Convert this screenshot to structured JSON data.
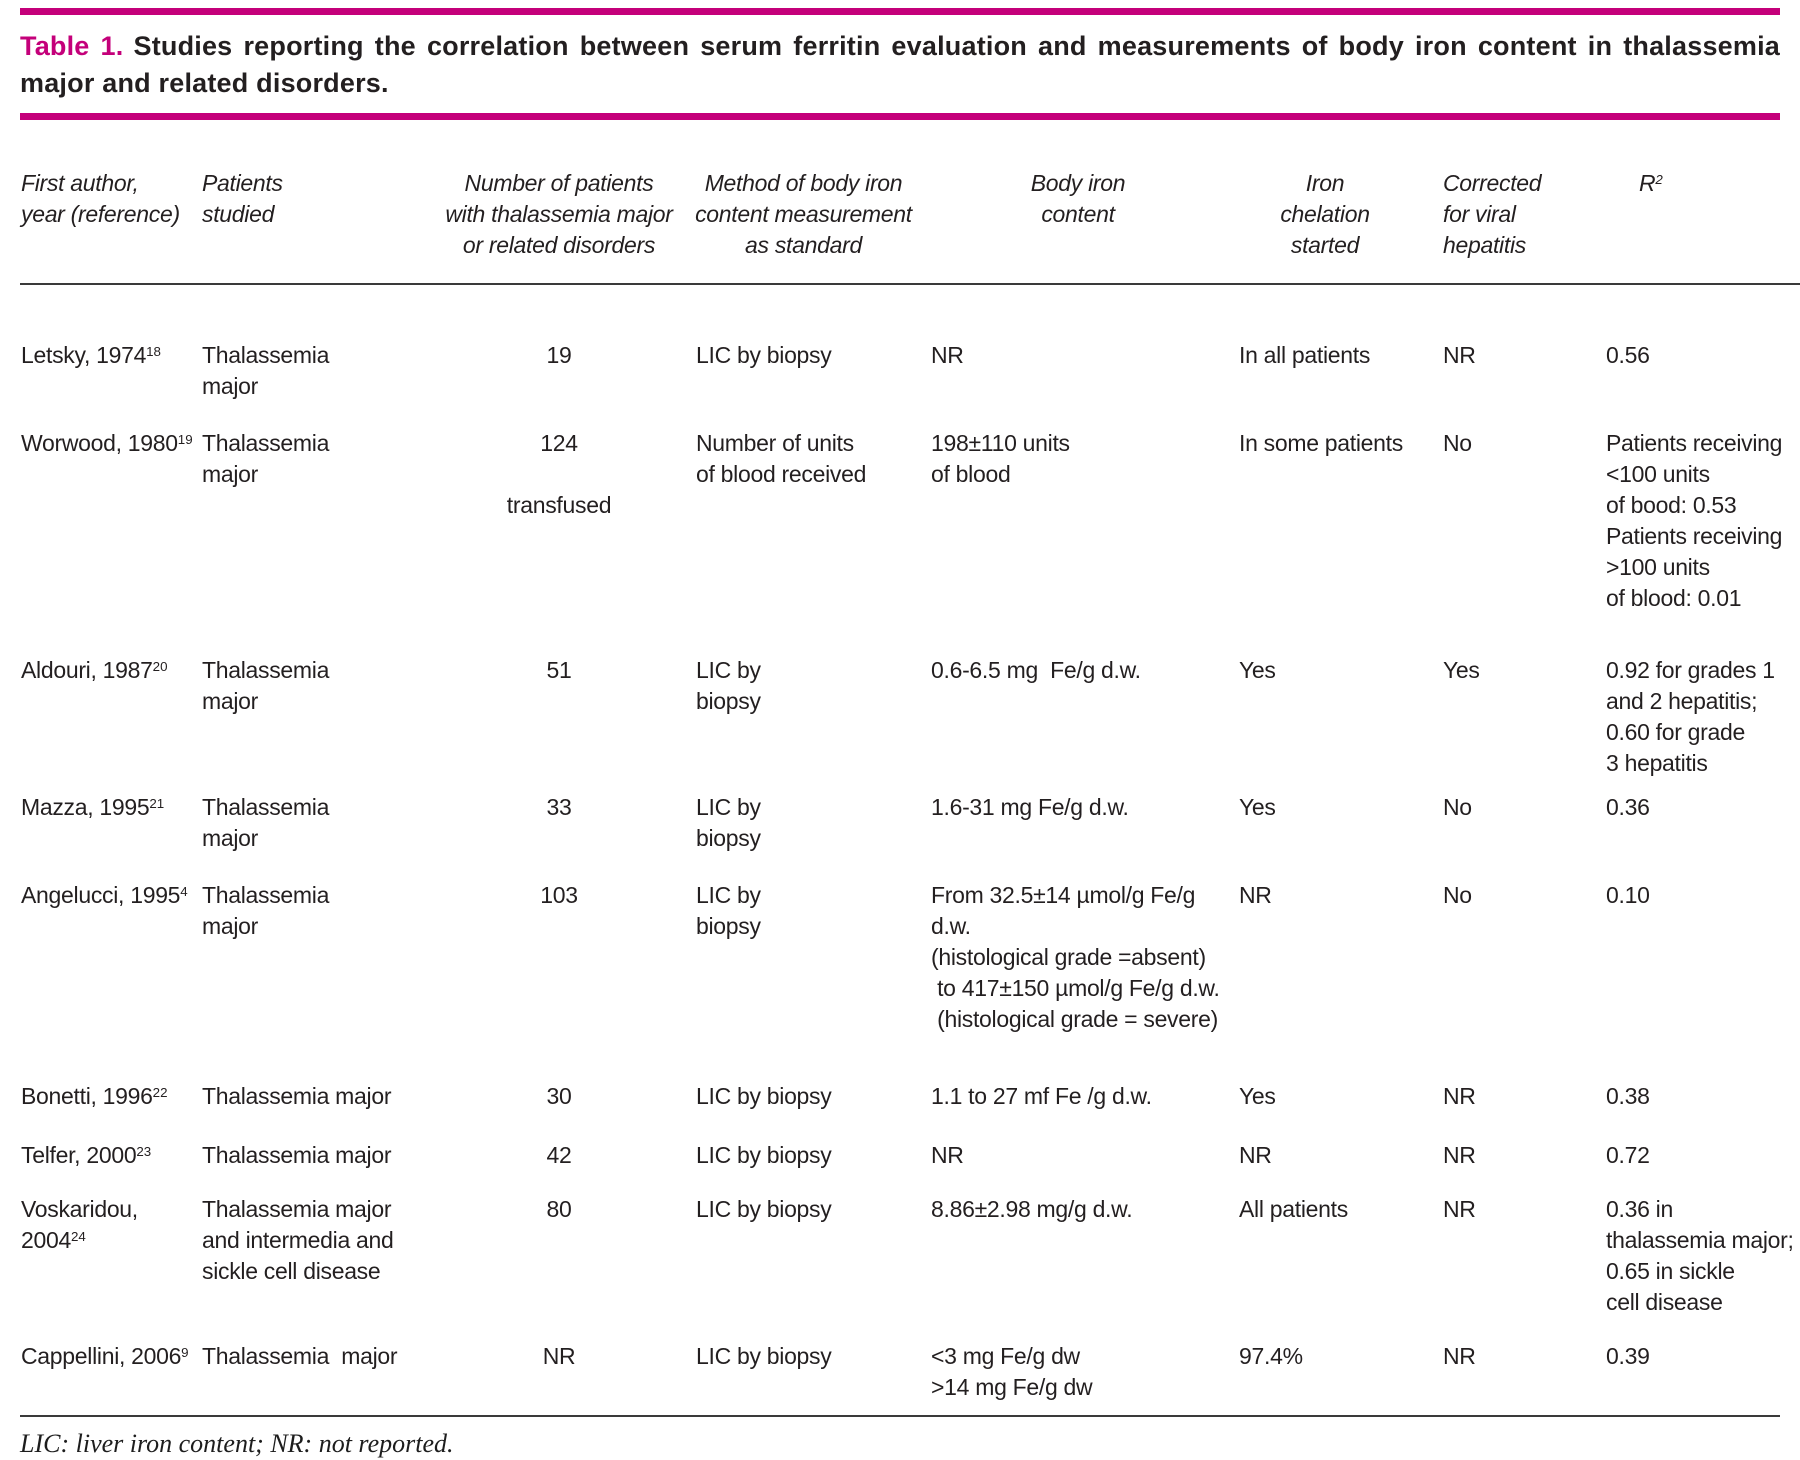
{
  "title": {
    "label": "Table 1.",
    "caption": "Studies reporting the correlation between serum ferritin evaluation and measurements of body iron content in thalassemia major and related disorders."
  },
  "table": {
    "columns": [
      {
        "key": "author",
        "label": "First author,\nyear (reference)"
      },
      {
        "key": "patients",
        "label": "Patients\nstudied"
      },
      {
        "key": "n_patients",
        "label": "Number of patients\nwith thalassemia major\nor related disorders"
      },
      {
        "key": "method",
        "label": "Method of body iron\ncontent measurement\nas standard"
      },
      {
        "key": "body_iron",
        "label": "Body iron\ncontent"
      },
      {
        "key": "chelation",
        "label": "Iron\nchelation\nstarted"
      },
      {
        "key": "corrected",
        "label": "Corrected\nfor viral\nhepatitis"
      },
      {
        "key": "r2",
        "label": "R",
        "sup": "2"
      }
    ],
    "rows": [
      {
        "author": {
          "text": "Letsky, 1974",
          "sup": "18"
        },
        "patients": "Thalassemia\nmajor",
        "n_patients": "19",
        "method": "LIC by biopsy",
        "body_iron": "NR",
        "chelation": "In all patients",
        "corrected": "NR",
        "r2": "0.56"
      },
      {
        "author": {
          "text": "Worwood, 1980",
          "sup": "19"
        },
        "patients": "Thalassemia\nmajor",
        "n_patients": "124\n\ntransfused",
        "method": "Number of units\nof blood received",
        "body_iron": "198±110 units\nof blood",
        "chelation": "In some patients",
        "corrected": "No",
        "r2": "Patients receiving\n<100 units\nof bood: 0.53\nPatients receiving\n>100 units\nof blood: 0.01"
      },
      {
        "author": {
          "text": "Aldouri, 1987",
          "sup": "20"
        },
        "patients": "Thalassemia\nmajor",
        "n_patients": "51",
        "method": "LIC by\nbiopsy",
        "body_iron": "0.6-6.5 mg  Fe/g d.w.",
        "chelation": "Yes",
        "corrected": "Yes",
        "r2": "0.92 for grades 1\nand 2 hepatitis;\n0.60 for grade\n3 hepatitis"
      },
      {
        "author": {
          "text": "Mazza, 1995",
          "sup": "21"
        },
        "patients": "Thalassemia\nmajor",
        "n_patients": "33",
        "method": "LIC by\nbiopsy",
        "body_iron": "1.6-31 mg Fe/g d.w.",
        "chelation": "Yes",
        "corrected": "No",
        "r2": "0.36"
      },
      {
        "author": {
          "text": "Angelucci, 1995",
          "sup": "4"
        },
        "patients": "Thalassemia\nmajor",
        "n_patients": "103",
        "method": "LIC by\nbiopsy",
        "body_iron": "From 32.5±14 µmol/g Fe/g d.w.\n(histological grade =absent)\n to 417±150 µmol/g Fe/g d.w.\n (histological grade = severe)",
        "chelation": "NR",
        "corrected": "No",
        "r2": "0.10"
      },
      {
        "author": {
          "text": "Bonetti, 1996",
          "sup": "22"
        },
        "patients": "Thalassemia major",
        "n_patients": "30",
        "method": "LIC by biopsy",
        "body_iron": "1.1 to 27 mf Fe /g d.w.",
        "chelation": "Yes",
        "corrected": "NR",
        "r2": "0.38"
      },
      {
        "author": {
          "text": "Telfer, 2000",
          "sup": "23"
        },
        "patients": "Thalassemia major",
        "n_patients": "42",
        "method": "LIC by biopsy",
        "body_iron": "NR",
        "chelation": "NR",
        "corrected": "NR",
        "r2": "0.72"
      },
      {
        "author": {
          "text": "Voskaridou, 2004",
          "sup": "24"
        },
        "patients": "Thalassemia major\nand intermedia and\nsickle cell disease",
        "n_patients": "80",
        "method": "LIC by biopsy",
        "body_iron": "8.86±2.98 mg/g d.w.",
        "chelation": "All patients",
        "corrected": "NR",
        "r2": "0.36 in\nthalassemia major;\n0.65 in sickle\ncell disease"
      },
      {
        "author": {
          "text": "Cappellini, 2006",
          "sup": "9"
        },
        "patients": "Thalassemia  major",
        "n_patients": "NR",
        "method": "LIC by biopsy",
        "body_iron": "<3 mg Fe/g dw\n>14 mg Fe/g dw",
        "chelation": "97.4%",
        "corrected": "NR",
        "r2": "0.39"
      }
    ]
  },
  "footnote": "LIC: liver iron content; NR: not reported.",
  "colors": {
    "accent": "#c4007a",
    "text": "#231f20",
    "rule": "#3a3a3a"
  }
}
